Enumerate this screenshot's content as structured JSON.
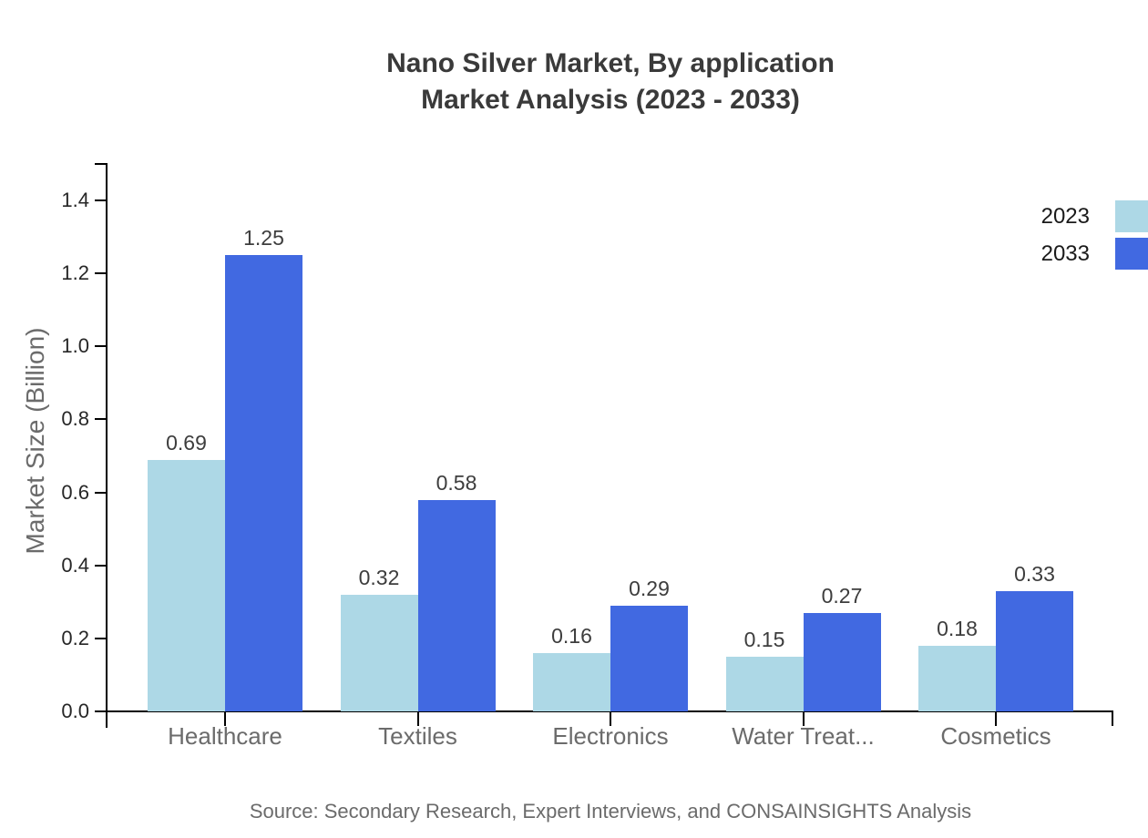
{
  "title": {
    "line1": "Nano Silver Market, By application",
    "line2": "Market Analysis (2023 - 2033)"
  },
  "source": "Source: Secondary Research, Expert Interviews, and CONSAINSIGHTS Analysis",
  "colors": {
    "series_2023": "#ADD8E6",
    "series_2033": "#4169E1",
    "axis": "#000000",
    "title_text": "#3a3a3a",
    "tick_text": "#262626",
    "category_text": "#6b6b6b",
    "value_label_text": "#3d3d3d",
    "source_text": "#6b6b6b",
    "legend_text": "#1a1a1a"
  },
  "chart_data": {
    "type": "bar",
    "title": "Nano Silver Market, By application Market Analysis (2023 - 2033)",
    "categories": [
      "Healthcare",
      "Textiles",
      "Electronics",
      "Water Treat...",
      "Cosmetics"
    ],
    "series": [
      {
        "name": "2023",
        "color": "#ADD8E6",
        "values": [
          0.69,
          0.32,
          0.16,
          0.15,
          0.18
        ]
      },
      {
        "name": "2033",
        "color": "#4169E1",
        "values": [
          1.25,
          0.58,
          0.29,
          0.27,
          0.33
        ]
      }
    ],
    "xlabel": "",
    "ylabel": "Market Size (Billion)",
    "ylim": [
      0,
      1.5
    ],
    "yticks": [
      0.0,
      0.2,
      0.4,
      0.6,
      0.8,
      1.0,
      1.2,
      1.4
    ],
    "ytick_decimals": 1,
    "value_label_decimals": 2,
    "grid": false,
    "legend_position": "top-right",
    "value_labels": true
  }
}
